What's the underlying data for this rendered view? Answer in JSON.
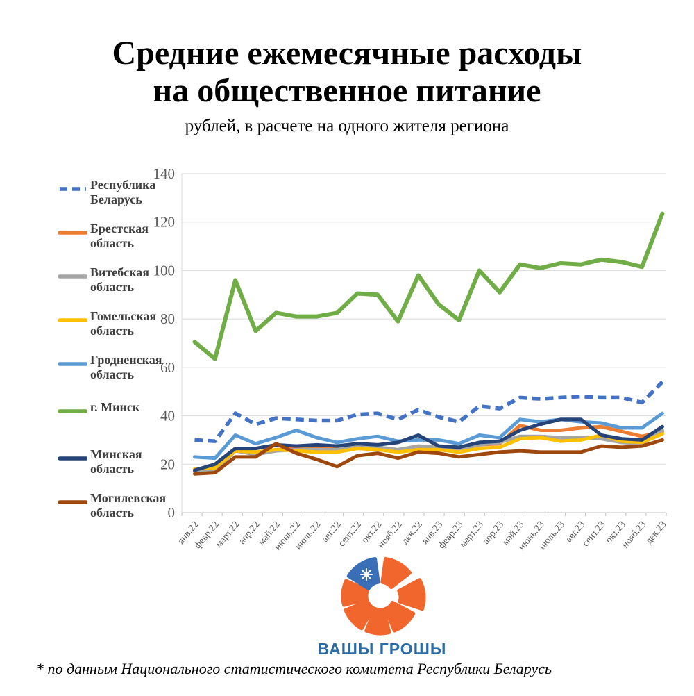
{
  "title": {
    "line1": "Средние ежемесячные расходы",
    "line2": "на общественное питание"
  },
  "subtitle": "рублей, в расчете на одного жителя региона",
  "footnote": "* по данным Национального статистического комитета Республики Беларусь",
  "logo": {
    "text": "ВАШЫ ГРОШЫ",
    "orange": "#f0662c",
    "ornament_blue": "#3a6fb7",
    "text_color": "#2a6ba6"
  },
  "chart_data": {
    "type": "line",
    "title": "Средние ежемесячные расходы на общественное питание",
    "ylabel": "рублей, в расчете на одного жителя региона",
    "ylim": [
      0,
      140
    ],
    "y_ticks": [
      0,
      20,
      40,
      60,
      80,
      100,
      120,
      140
    ],
    "grid": true,
    "legend_position": "left",
    "grid_color": "#d9d9d9",
    "axis_label_color": "#595959",
    "categories": [
      "янв.22",
      "февр.22",
      "март.22",
      "апр.22",
      "май.22",
      "июнь.22",
      "июль.22",
      "авг.22",
      "сент.22",
      "окт.22",
      "нояб.22",
      "дек.22",
      "янв.23",
      "февр.23",
      "март.23",
      "апр.23",
      "май.23",
      "июнь.23",
      "июль.23",
      "авг.23",
      "сент.23",
      "окт.23",
      "нояб.23",
      "дек.23"
    ],
    "series": [
      {
        "name": "Республика Беларусь",
        "color": "#4472C4",
        "dash": true,
        "line_width": 5.5,
        "values": [
          30,
          29.5,
          41,
          36.5,
          39,
          38.5,
          38,
          38,
          40.5,
          41,
          38.5,
          42.5,
          39.5,
          37.5,
          44,
          43,
          47.5,
          47,
          47.5,
          48,
          47.5,
          47.5,
          45.5,
          54
        ]
      },
      {
        "name": "Брестская область",
        "color": "#ED7D31",
        "dash": false,
        "line_width": 5,
        "values": [
          17,
          18,
          26,
          24.5,
          26,
          26.5,
          27,
          26.5,
          28,
          26.5,
          25.5,
          26.5,
          26,
          25.5,
          28,
          28.5,
          36,
          34,
          34,
          35,
          35.5,
          33.5,
          31.5,
          33.5
        ]
      },
      {
        "name": "Витебская область",
        "color": "#A5A5A5",
        "dash": false,
        "line_width": 5,
        "values": [
          17,
          17.5,
          25.5,
          24,
          25.5,
          26,
          26,
          26,
          27.5,
          27,
          26,
          27.5,
          27,
          26,
          28,
          29,
          31.5,
          31.5,
          31,
          31,
          30.5,
          29,
          28.5,
          34
        ]
      },
      {
        "name": "Гомельская область",
        "color": "#FFC000",
        "dash": false,
        "line_width": 5,
        "values": [
          18,
          18.5,
          25.5,
          25,
          26,
          25.5,
          25,
          25,
          26.5,
          26,
          25,
          26,
          26,
          25,
          26.5,
          27,
          30.5,
          31,
          29.5,
          30,
          32,
          29.5,
          29,
          32.5
        ]
      },
      {
        "name": "Гродненская область",
        "color": "#5B9BD5",
        "dash": false,
        "line_width": 5,
        "values": [
          23,
          22.5,
          32,
          28.5,
          31,
          34,
          31,
          29,
          30.5,
          31.5,
          29.5,
          30,
          30,
          28.5,
          32,
          31,
          38.5,
          37.5,
          38.5,
          37.5,
          37,
          35,
          35,
          41
        ]
      },
      {
        "name": "г. Минск",
        "color": "#70AD47",
        "dash": false,
        "line_width": 6,
        "values": [
          70.5,
          63.5,
          96,
          75,
          82.5,
          81,
          81,
          82.5,
          90.5,
          90,
          79,
          98,
          86,
          79.5,
          100,
          91,
          102.5,
          101,
          103,
          102.5,
          104.5,
          103.5,
          101.5,
          123.5
        ]
      },
      {
        "name": "Минская область",
        "color": "#264478",
        "dash": false,
        "line_width": 5,
        "values": [
          17.5,
          20,
          26.5,
          26.5,
          28,
          27.5,
          28,
          27.5,
          28.5,
          28,
          29,
          32,
          27.5,
          27,
          29,
          29.5,
          34,
          36.5,
          38.5,
          38.5,
          32,
          30.5,
          30,
          35.5
        ]
      },
      {
        "name": "Могилевская область",
        "color": "#9E480E",
        "dash": false,
        "line_width": 5,
        "values": [
          16,
          16.5,
          23,
          23,
          28.5,
          24.5,
          22,
          19,
          23.5,
          24.5,
          22.5,
          25,
          24.5,
          23,
          24,
          25,
          25.5,
          25,
          25,
          25,
          27.5,
          27,
          27.5,
          30
        ]
      }
    ]
  }
}
